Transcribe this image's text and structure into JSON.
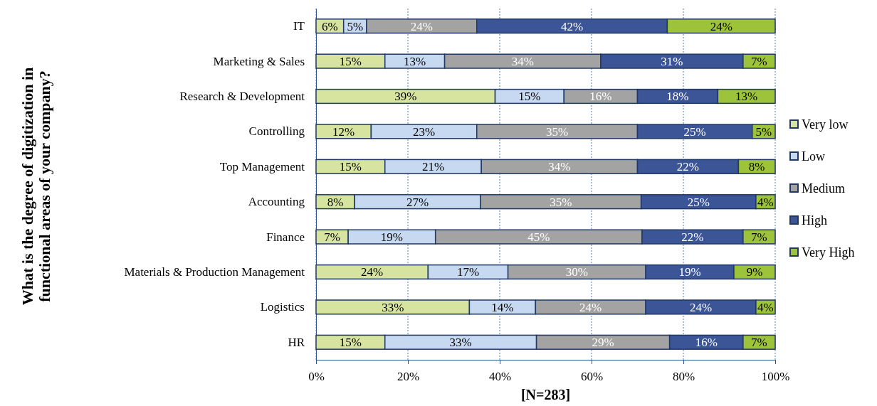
{
  "chart_data": {
    "type": "bar",
    "orientation": "horizontal",
    "stacked": true,
    "ylabel": "What is the degree of digitization in functional areas of your company?",
    "xlabel": "[N=283]",
    "categories": [
      "IT",
      "Marketing & Sales",
      "Research & Development",
      "Controlling",
      "Top Management",
      "Accounting",
      "Finance",
      "Materials & Production Management",
      "Logistics",
      "HR"
    ],
    "xlim": [
      0,
      100
    ],
    "xticks": [
      {
        "value": 0,
        "label": "0%"
      },
      {
        "value": 20,
        "label": "20%"
      },
      {
        "value": 40,
        "label": "40%"
      },
      {
        "value": 60,
        "label": "60%"
      },
      {
        "value": 80,
        "label": "80%"
      },
      {
        "value": 100,
        "label": "100%"
      }
    ],
    "grid": "x",
    "legend": "right",
    "series": [
      {
        "name": "Very low",
        "color": "#d7e4a0",
        "values": [
          6,
          15,
          39,
          12,
          15,
          8.4,
          7,
          24.4,
          33.4,
          15
        ],
        "value_labels": [
          "6%",
          "15%",
          "39%",
          "12%",
          "15%",
          "8%",
          "7%",
          "24%",
          "33%",
          "15%"
        ]
      },
      {
        "name": "Low",
        "color": "#c6d9f1",
        "values": [
          5,
          13,
          15,
          23,
          21,
          27.4,
          19,
          17.4,
          14.4,
          33
        ],
        "value_labels": [
          "5%",
          "13%",
          "15%",
          "23%",
          "21%",
          "27%",
          "19%",
          "17%",
          "14%",
          "33%"
        ]
      },
      {
        "name": "Medium",
        "color": "#a3a3a3",
        "values": [
          24,
          34,
          16,
          35,
          34,
          35,
          45,
          30,
          24,
          29
        ],
        "value_labels": [
          "24%",
          "34%",
          "16%",
          "35%",
          "34%",
          "35%",
          "45%",
          "30%",
          "24%",
          "29%"
        ]
      },
      {
        "name": "High",
        "color": "#3c5597",
        "values": [
          41.5,
          31,
          17.5,
          25,
          22,
          25,
          22,
          19.2,
          24,
          16
        ],
        "value_labels": [
          "42%",
          "31%",
          "18%",
          "25%",
          "22%",
          "25%",
          "22%",
          "19%",
          "24%",
          "16%"
        ]
      },
      {
        "name": "Very High",
        "color": "#9dc33b",
        "values": [
          23.5,
          7,
          12.5,
          5,
          8,
          4.2,
          7,
          9,
          4.2,
          7
        ],
        "value_labels": [
          "24%",
          "7%",
          "13%",
          "5%",
          "8%",
          "4%",
          "7%",
          "9%",
          "4%",
          "7%"
        ]
      }
    ]
  }
}
